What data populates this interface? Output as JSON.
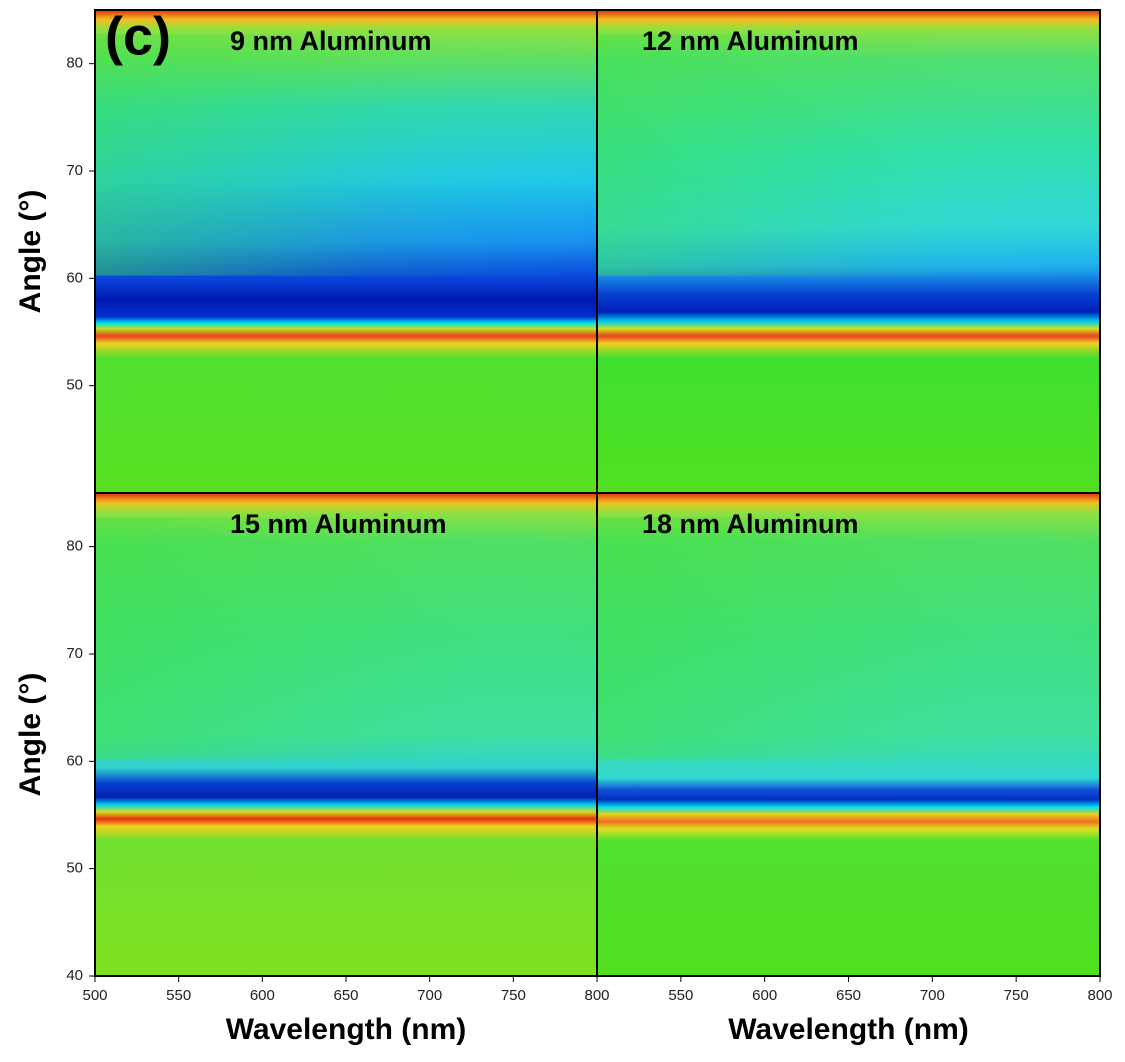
{
  "chart_data": [
    {
      "type": "heatmap",
      "title": "9 nm Aluminum",
      "panel_label": "(c)",
      "ylabel": "Angle (°)",
      "xlim": [
        500,
        800
      ],
      "ylim": [
        40,
        85
      ],
      "yticks": [
        50,
        60,
        70,
        80
      ]
    },
    {
      "type": "heatmap",
      "title": "12 nm Aluminum",
      "xlim": [
        500,
        800
      ],
      "ylim": [
        40,
        85
      ]
    },
    {
      "type": "heatmap",
      "title": "15 nm Aluminum",
      "ylabel": "Angle (°)",
      "xlabel": "Wavelength (nm)",
      "xlim": [
        500,
        800
      ],
      "ylim": [
        40,
        85
      ],
      "xticks": [
        500,
        550,
        600,
        650,
        700,
        750,
        800
      ],
      "yticks": [
        40,
        50,
        60,
        70,
        80
      ]
    },
    {
      "type": "heatmap",
      "title": "18 nm Aluminum",
      "xlabel": "Wavelength (nm)",
      "xlim": [
        500,
        800
      ],
      "ylim": [
        40,
        85
      ],
      "xticks": [
        550,
        600,
        650,
        700,
        750,
        800
      ]
    }
  ]
}
